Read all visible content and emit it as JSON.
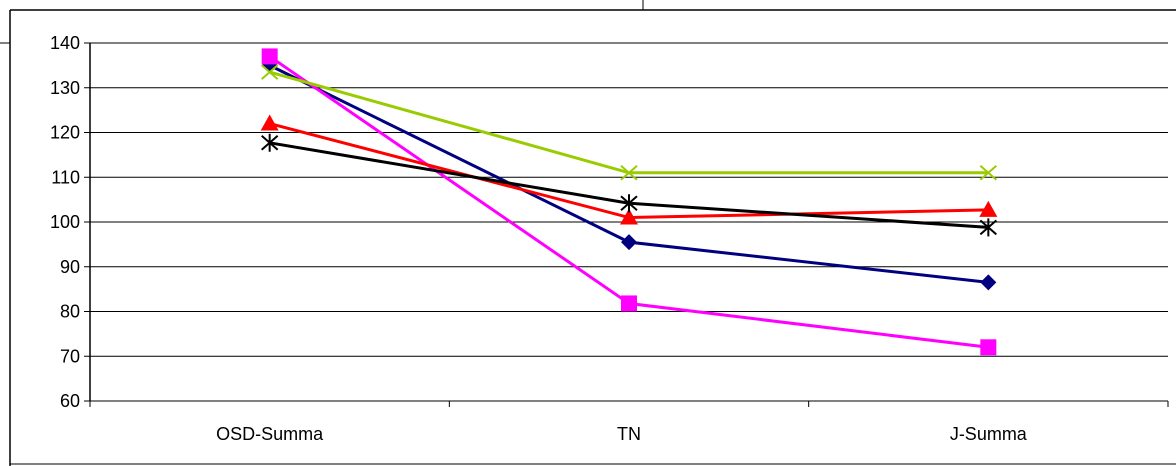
{
  "chart_data": {
    "type": "line",
    "categories": [
      "OSD-Summa",
      "TN",
      "J-Summa"
    ],
    "ylim": [
      60,
      140
    ],
    "yticks": [
      60,
      70,
      80,
      90,
      100,
      110,
      120,
      130,
      140
    ],
    "grid": true,
    "legend": "none",
    "series": [
      {
        "values": [
          135,
          95.5,
          86.5
        ],
        "color": "#000080",
        "marker": "diamond"
      },
      {
        "values": [
          137,
          81.8,
          72
        ],
        "color": "#ff00ff",
        "marker": "square"
      },
      {
        "values": [
          122,
          101,
          102.7
        ],
        "color": "#ff0000",
        "marker": "triangle"
      },
      {
        "values": [
          133.5,
          111,
          111
        ],
        "color": "#99cc00",
        "marker": "x"
      },
      {
        "values": [
          117.7,
          104.2,
          98.8
        ],
        "color": "#000000",
        "marker": "star"
      }
    ]
  }
}
